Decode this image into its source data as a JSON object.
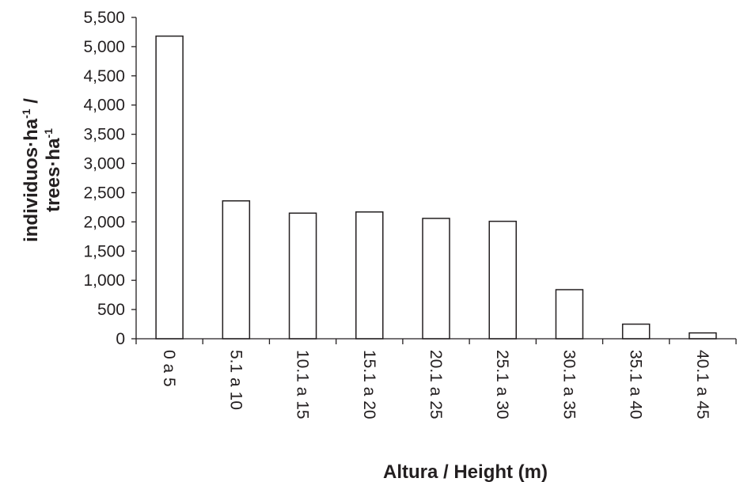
{
  "chart_data": {
    "type": "bar",
    "categories": [
      "0 a 5",
      "5.1 a 10",
      "10.1 a 15",
      "15.1 a 20",
      "20.1 a 25",
      "25.1 a 30",
      "30.1 a 35",
      "35.1 a 40",
      "40.1 a 45"
    ],
    "values": [
      5180,
      2360,
      2150,
      2170,
      2060,
      2010,
      840,
      250,
      100
    ],
    "yticks": [
      "0",
      "500",
      "1,000",
      "1,500",
      "2,000",
      "2,500",
      "3,000",
      "3,500",
      "4,000",
      "4,500",
      "5,000",
      "5,500"
    ],
    "ylim": [
      0,
      5500
    ],
    "title": "",
    "xlabel": "Altura / Height (m)",
    "ylabel_line1": "individuos·ha",
    "ylabel_line1_sup": "-1",
    "ylabel_line1_suffix": " /",
    "ylabel_line2": "trees·ha",
    "ylabel_line2_sup": "-1",
    "grid": false,
    "bar_fill": "#ffffff",
    "bar_stroke": "#231f20",
    "axis_color": "#231f20"
  }
}
